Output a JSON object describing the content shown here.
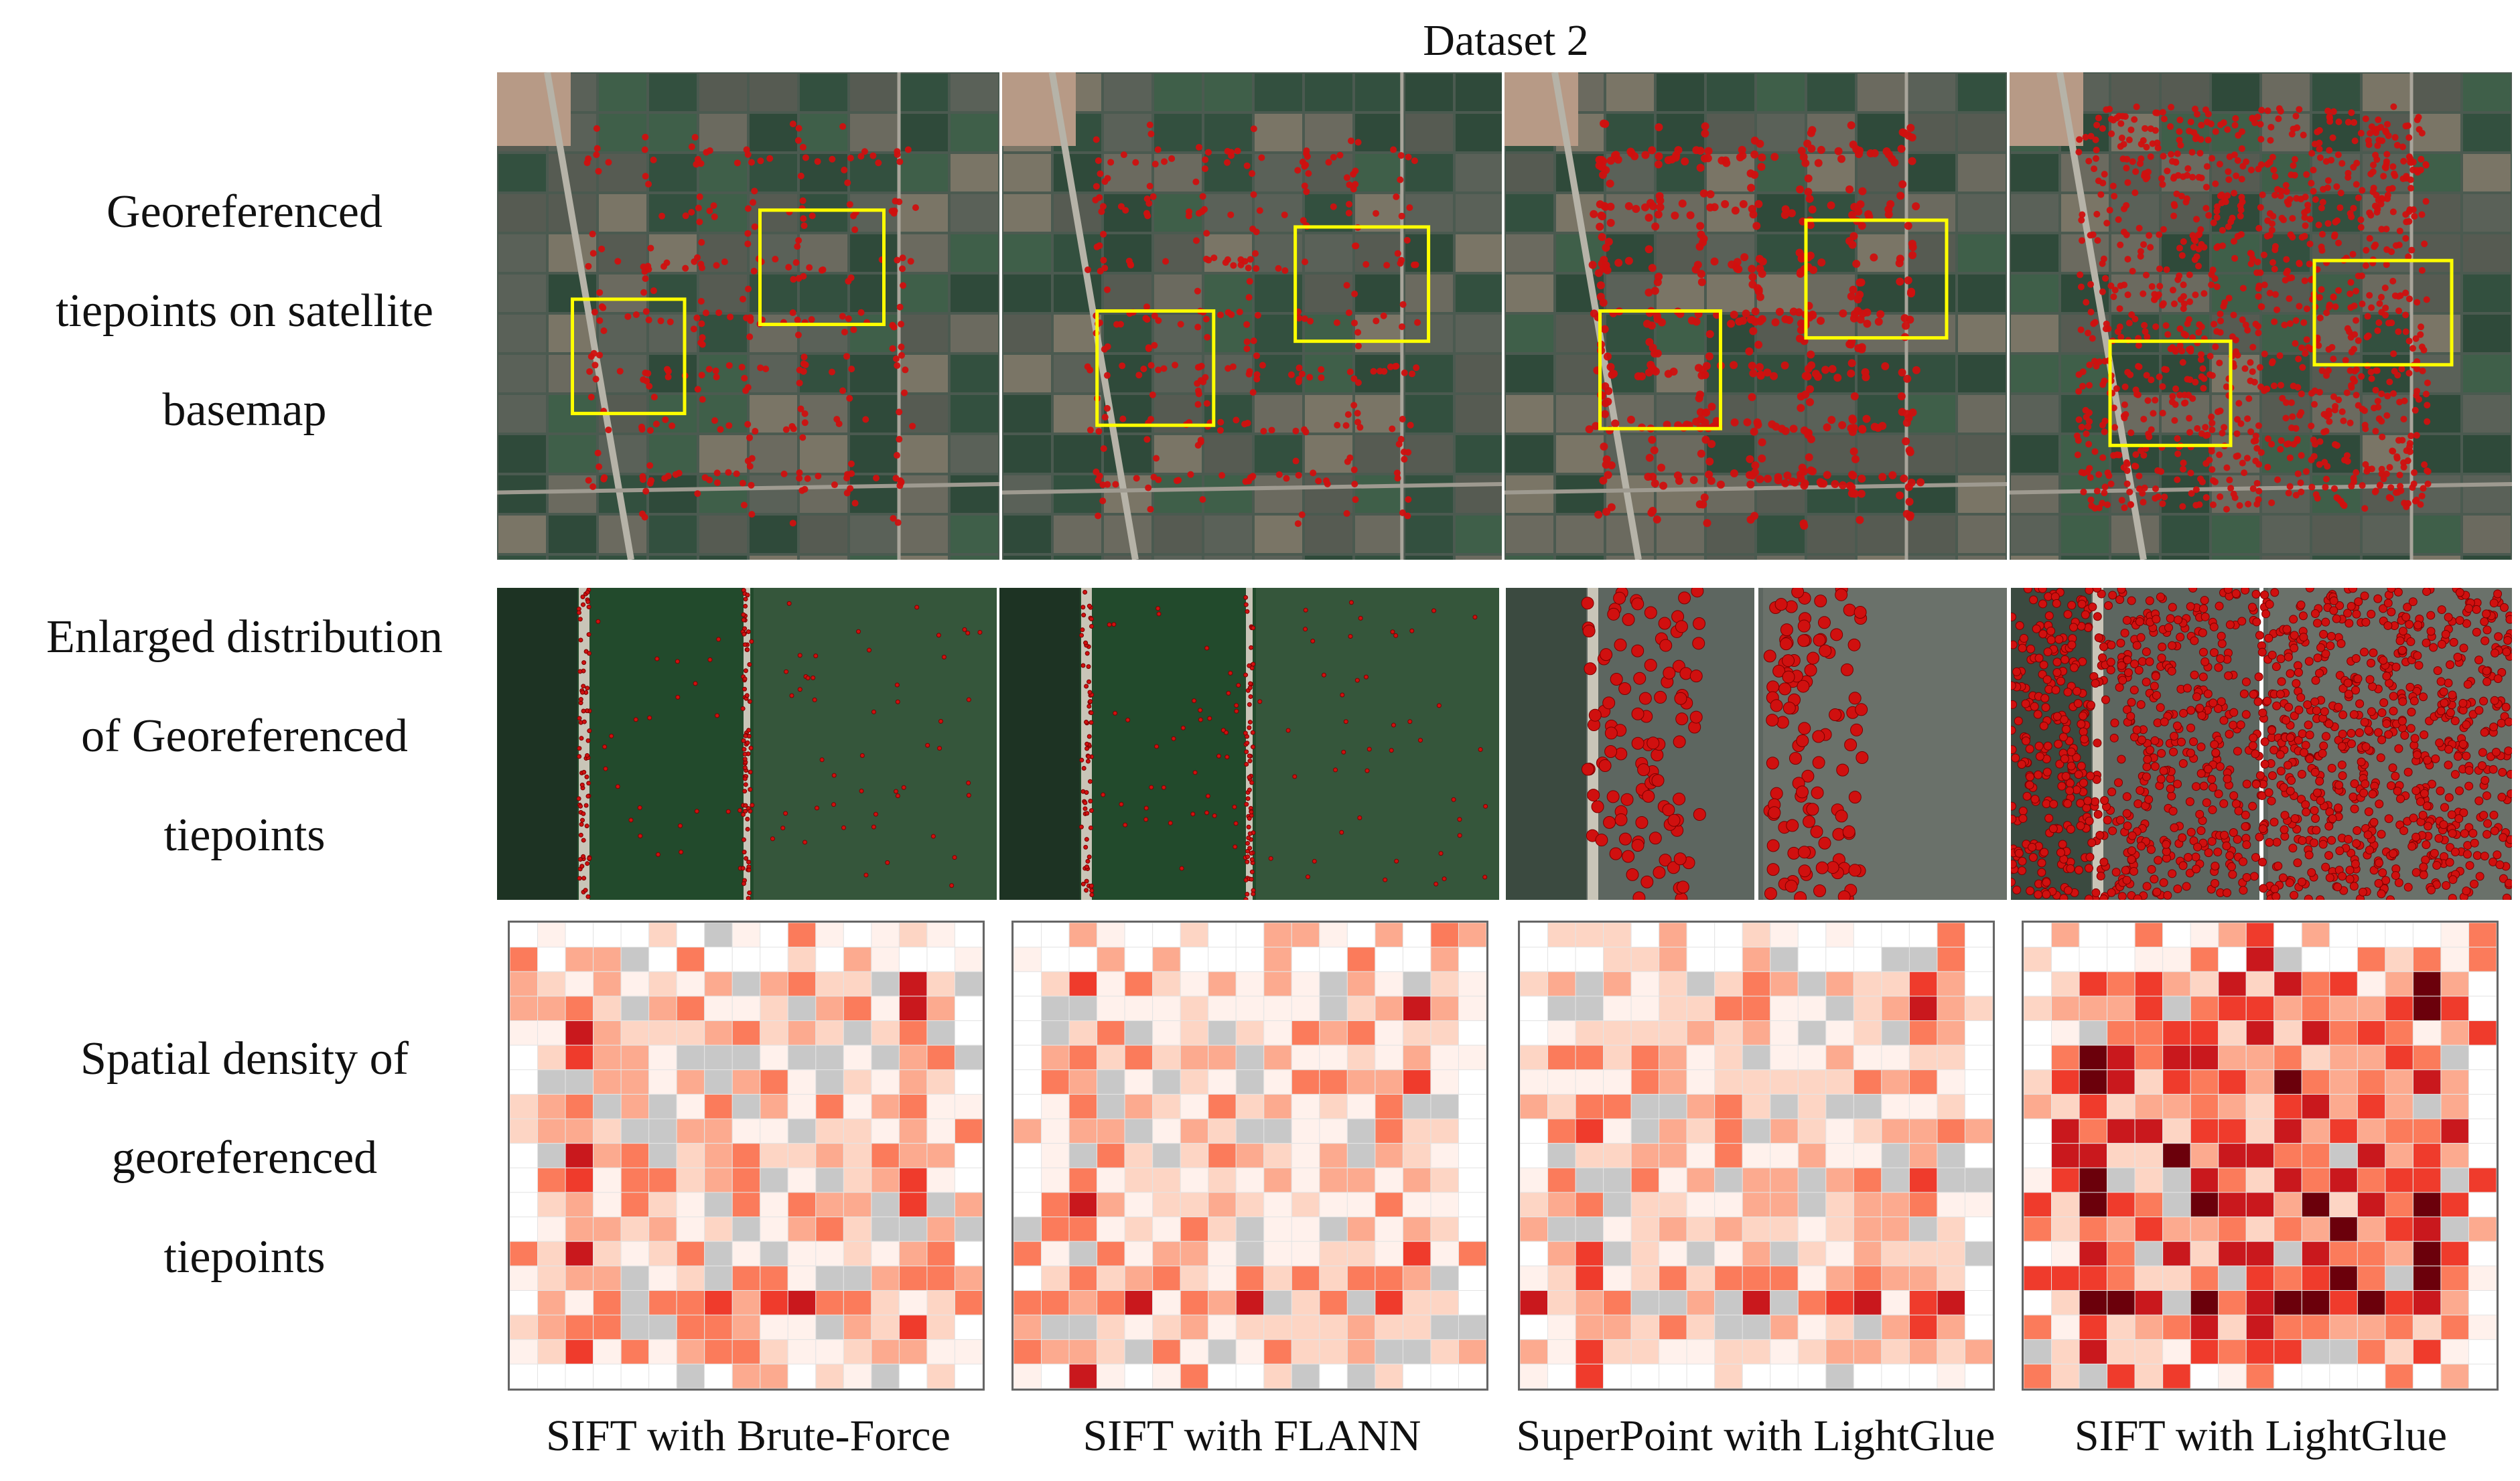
{
  "title": "Dataset 2",
  "row_labels": [
    [
      "Georeferenced",
      "tiepoints on satellite",
      "basemap"
    ],
    [
      "Enlarged distribution",
      "of Georeferenced",
      "tiepoints"
    ],
    [
      "Spatial density of",
      "georeferenced",
      "tiepoints"
    ]
  ],
  "methods": [
    "SIFT with Brute-Force",
    "SIFT with FLANN",
    "SuperPoint with LightGlue",
    "SIFT with LightGlue"
  ],
  "colors": {
    "tiepoint": "#d0100f",
    "highlight_box": "#ffff00",
    "no_data_cell": "#c8c8c8",
    "heat_low": "#fff1ec",
    "heat_high": "#6b000b"
  }
}
